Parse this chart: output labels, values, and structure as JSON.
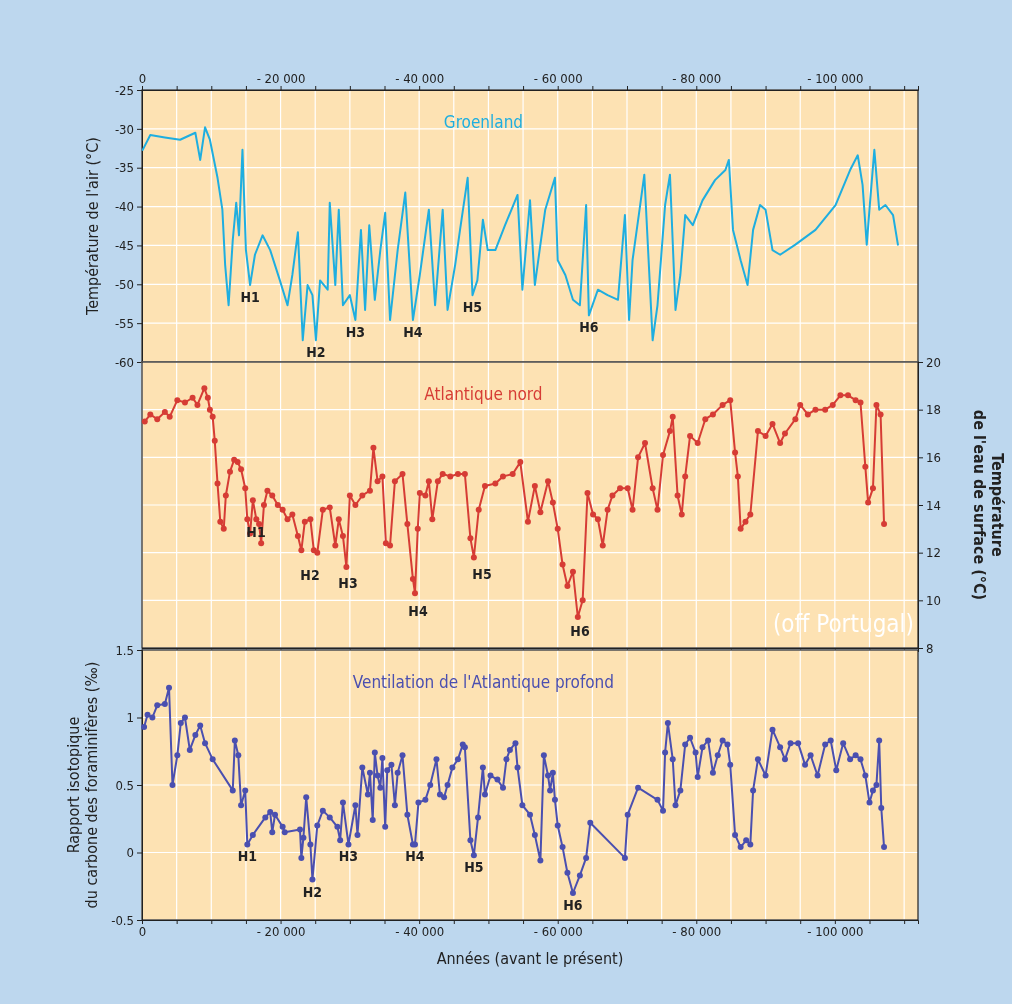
{
  "chart_data": [
    {
      "type": "line",
      "ylabel": "Température de l'air (°C)",
      "xlim": [
        0,
        -112000
      ],
      "x2lim": [
        0,
        -112000
      ],
      "x2ticks": [
        {
          "value": 0,
          "label": "0"
        },
        {
          "value": -5000,
          "label": null
        },
        {
          "value": -10000,
          "label": null
        },
        {
          "value": -15000,
          "label": null
        },
        {
          "value": -20000,
          "label": "- 20 000"
        },
        {
          "value": -25000,
          "label": null
        },
        {
          "value": -30000,
          "label": null
        },
        {
          "value": -35000,
          "label": null
        },
        {
          "value": -40000,
          "label": "- 40 000"
        },
        {
          "value": -45000,
          "label": null
        },
        {
          "value": -50000,
          "label": null
        },
        {
          "value": -55000,
          "label": null
        },
        {
          "value": -60000,
          "label": "- 60 000"
        },
        {
          "value": -65000,
          "label": null
        },
        {
          "value": -70000,
          "label": null
        },
        {
          "value": -75000,
          "label": null
        },
        {
          "value": -80000,
          "label": "- 80 000"
        },
        {
          "value": -85000,
          "label": null
        },
        {
          "value": -90000,
          "label": null
        },
        {
          "value": -95000,
          "label": null
        },
        {
          "value": -100000,
          "label": "- 100 000"
        },
        {
          "value": -105000,
          "label": null
        },
        {
          "value": -110000,
          "label": null
        }
      ],
      "ylim": [
        -60,
        -25
      ],
      "yticks": [
        -60,
        -55,
        -50,
        -45,
        -40,
        -35,
        -30,
        -25
      ],
      "grid": true,
      "series": [
        {
          "name": "Groenland",
          "color": "#1eaee0",
          "x": [
            -100,
            -1200,
            -3300,
            -5500,
            -7700,
            -8400,
            -9100,
            -9800,
            -10900,
            -11600,
            -12000,
            -12500,
            -13100,
            -13600,
            -14000,
            -14500,
            -15000,
            -15600,
            -16300,
            -17400,
            -18500,
            -19900,
            -21000,
            -21700,
            -22500,
            -23200,
            -23900,
            -24600,
            -25100,
            -25700,
            -26800,
            -27100,
            -27900,
            -28400,
            -29000,
            -30000,
            -30800,
            -31600,
            -32200,
            -32800,
            -33600,
            -34400,
            -35100,
            -35800,
            -36900,
            -38000,
            -39100,
            -40100,
            -41400,
            -42300,
            -43400,
            -44100,
            -45200,
            -45900,
            -47000,
            -47700,
            -48400,
            -49200,
            -49900,
            -51000,
            -52400,
            -54200,
            -54900,
            -56000,
            -56700,
            -57500,
            -58200,
            -59600,
            -60000,
            -61100,
            -62200,
            -63200,
            -64100,
            -64500,
            -65800,
            -67200,
            -68700,
            -69700,
            -70300,
            -70800,
            -71900,
            -72500,
            -73700,
            -74400,
            -75500,
            -76200,
            -77000,
            -77700,
            -78400,
            -79500,
            -80900,
            -82700,
            -84200,
            -84700,
            -85300,
            -86400,
            -87400,
            -88200,
            -89200,
            -90000,
            -91000,
            -92100,
            -94300,
            -97200,
            -100100,
            -102200,
            -103300,
            -104000,
            -104600,
            -105100,
            -105700,
            -106400,
            -107300,
            -108400,
            -109100
          ],
          "values": [
            -32.7,
            -30.8,
            -31.1,
            -31.4,
            -30.5,
            -34.0,
            -29.8,
            -31.4,
            -36.3,
            -40.4,
            -47.5,
            -52.7,
            -44.3,
            -39.5,
            -43.7,
            -32.7,
            -45.6,
            -50.1,
            -46.2,
            -43.7,
            -45.6,
            -49.5,
            -52.7,
            -48.8,
            -43.3,
            -57.2,
            -50.1,
            -51.4,
            -57.2,
            -49.5,
            -50.7,
            -39.5,
            -50.1,
            -40.4,
            -52.7,
            -51.4,
            -54.6,
            -43.0,
            -53.3,
            -42.4,
            -52.0,
            -45.6,
            -40.8,
            -54.6,
            -45.6,
            -38.2,
            -54.6,
            -48.8,
            -40.4,
            -52.7,
            -40.4,
            -53.3,
            -47.5,
            -43.0,
            -36.3,
            -51.4,
            -49.5,
            -41.7,
            -45.6,
            -45.6,
            -42.4,
            -38.5,
            -50.7,
            -39.2,
            -50.1,
            -44.9,
            -40.4,
            -36.3,
            -46.9,
            -48.8,
            -52.0,
            -52.7,
            -39.8,
            -54.0,
            -50.7,
            -51.4,
            -52.0,
            -41.1,
            -54.6,
            -46.9,
            -39.8,
            -35.9,
            -57.2,
            -52.7,
            -39.8,
            -35.9,
            -53.3,
            -48.8,
            -41.1,
            -42.4,
            -39.2,
            -36.6,
            -35.3,
            -34.0,
            -43.0,
            -46.9,
            -50.1,
            -43.0,
            -39.8,
            -40.4,
            -45.6,
            -46.2,
            -44.9,
            -43.0,
            -39.8,
            -35.3,
            -33.4,
            -37.2,
            -44.9,
            -39.2,
            -32.7,
            -40.4,
            -39.8,
            -41.1,
            -44.9
          ]
        }
      ],
      "annotations": [
        {
          "text": "H1",
          "x": -15600,
          "y": -50.1
        },
        {
          "text": "H2",
          "x": -25100,
          "y": -57.2
        },
        {
          "text": "H3",
          "x": -30800,
          "y": -54.6
        },
        {
          "text": "H4",
          "x": -39100,
          "y": -54.6
        },
        {
          "text": "H5",
          "x": -47700,
          "y": -51.4
        },
        {
          "text": "H6",
          "x": -64500,
          "y": -54.0
        }
      ]
    },
    {
      "type": "line",
      "y2label": "Température\nde l'eau de surface (°C)",
      "xlim": [
        0,
        -112000
      ],
      "xticks": [
        {
          "value": 0,
          "label": null
        },
        {
          "value": -5000,
          "label": null
        },
        {
          "value": -10000,
          "label": null
        },
        {
          "value": -15000,
          "label": null
        },
        {
          "value": -20000,
          "label": null
        },
        {
          "value": -25000,
          "label": null
        },
        {
          "value": -30000,
          "label": null
        },
        {
          "value": -35000,
          "label": null
        },
        {
          "value": -40000,
          "label": null
        },
        {
          "value": -45000,
          "label": null
        },
        {
          "value": -50000,
          "label": null
        },
        {
          "value": -55000,
          "label": null
        },
        {
          "value": -60000,
          "label": null
        },
        {
          "value": -65000,
          "label": null
        },
        {
          "value": -70000,
          "label": null
        },
        {
          "value": -75000,
          "label": null
        },
        {
          "value": -80000,
          "label": null
        },
        {
          "value": -85000,
          "label": null
        },
        {
          "value": -90000,
          "label": null
        },
        {
          "value": -95000,
          "label": null
        },
        {
          "value": -100000,
          "label": null
        },
        {
          "value": -105000,
          "label": null
        },
        {
          "value": -110000,
          "label": null
        }
      ],
      "y2lim": [
        8,
        20
      ],
      "y2ticks": [
        8,
        10,
        12,
        14,
        16,
        18,
        20
      ],
      "grid": true,
      "marker": "circle",
      "tick_labels": "y",
      "series": [
        {
          "name": "Atlantique nord",
          "color": "#d63c35",
          "axis": "y2",
          "x": [
            -400,
            -1200,
            -2200,
            -3300,
            -4000,
            -5100,
            -6200,
            -7300,
            -8000,
            -9000,
            -9500,
            -9800,
            -10200,
            -10500,
            -10900,
            -11300,
            -11800,
            -12100,
            -12700,
            -13300,
            -13800,
            -14300,
            -14900,
            -15200,
            -15600,
            -16000,
            -16500,
            -16900,
            -17200,
            -17600,
            -18100,
            -18800,
            -19600,
            -20300,
            -21000,
            -21700,
            -22500,
            -23000,
            -23500,
            -24300,
            -24800,
            -25300,
            -26100,
            -27100,
            -27900,
            -28400,
            -29000,
            -29500,
            -30000,
            -30800,
            -31800,
            -32900,
            -33400,
            -34000,
            -34700,
            -35200,
            -35800,
            -36500,
            -37600,
            -38300,
            -39100,
            -39400,
            -39800,
            -40100,
            -40900,
            -41400,
            -41900,
            -42700,
            -43400,
            -44500,
            -45600,
            -46600,
            -47400,
            -47900,
            -48600,
            -49500,
            -51000,
            -52100,
            -53500,
            -54600,
            -55700,
            -56700,
            -57500,
            -58600,
            -59300,
            -60000,
            -60700,
            -61400,
            -62200,
            -62900,
            -63600,
            -64300,
            -65100,
            -65800,
            -66500,
            -67200,
            -67900,
            -69000,
            -70100,
            -70800,
            -71600,
            -72600,
            -73700,
            -74400,
            -75200,
            -76200,
            -76600,
            -77300,
            -77900,
            -78400,
            -79100,
            -80200,
            -81300,
            -82400,
            -83800,
            -84900,
            -85600,
            -86000,
            -86400,
            -87100,
            -87800,
            -88900,
            -90000,
            -91000,
            -92100,
            -92800,
            -94300,
            -95000,
            -96100,
            -97200,
            -98600,
            -99700,
            -100800,
            -101900,
            -103000,
            -103700,
            -104400,
            -104800,
            -105500,
            -106000,
            -106600,
            -107100
          ],
          "values": [
            17.5,
            17.8,
            17.6,
            17.9,
            17.7,
            18.4,
            18.3,
            18.5,
            18.2,
            18.9,
            18.5,
            18.0,
            17.7,
            16.7,
            14.9,
            13.3,
            13.0,
            14.4,
            15.4,
            15.9,
            15.8,
            15.5,
            14.7,
            13.4,
            12.8,
            14.2,
            13.4,
            13.2,
            12.4,
            14.0,
            14.6,
            14.4,
            14.0,
            13.8,
            13.4,
            13.6,
            12.7,
            12.1,
            13.3,
            13.4,
            12.1,
            12.0,
            13.8,
            13.9,
            12.3,
            13.4,
            12.7,
            11.4,
            14.4,
            14.0,
            14.4,
            14.6,
            16.4,
            15.0,
            15.2,
            12.4,
            12.3,
            15.0,
            15.3,
            13.2,
            10.9,
            10.3,
            13.0,
            14.5,
            14.4,
            15.0,
            13.4,
            15.0,
            15.3,
            15.2,
            15.3,
            15.3,
            12.6,
            11.8,
            13.8,
            14.8,
            14.9,
            15.2,
            15.3,
            15.8,
            13.3,
            14.8,
            13.7,
            15.0,
            14.1,
            13.0,
            11.5,
            10.6,
            11.2,
            9.3,
            10.0,
            14.5,
            13.6,
            13.4,
            12.3,
            13.8,
            14.4,
            14.7,
            14.7,
            13.8,
            16.0,
            16.6,
            14.7,
            13.8,
            16.1,
            17.1,
            17.7,
            14.4,
            13.6,
            15.2,
            16.9,
            16.6,
            17.6,
            17.8,
            18.2,
            18.4,
            16.2,
            15.2,
            13.0,
            13.3,
            13.6,
            17.1,
            16.9,
            17.4,
            16.6,
            17.0,
            17.6,
            18.2,
            17.8,
            18.0,
            18.0,
            18.2,
            18.6,
            18.6,
            18.4,
            18.3,
            15.6,
            14.1,
            14.7,
            18.2,
            17.8,
            13.2
          ]
        }
      ],
      "annotations": [
        "H1",
        "H2",
        "H3",
        "H4",
        "H5",
        "H6",
        "(off Portugal)"
      ]
    },
    {
      "type": "line",
      "xlabel": "Années (avant le présent)",
      "ylabel": "Rapport isotopique\ndu carbone des foraminifères (‰)",
      "xlim": [
        0,
        -112000
      ],
      "xticks": [
        {
          "value": 0,
          "label": "0"
        },
        {
          "value": -5000,
          "label": null
        },
        {
          "value": -10000,
          "label": null
        },
        {
          "value": -15000,
          "label": null
        },
        {
          "value": -20000,
          "label": "- 20 000"
        },
        {
          "value": -25000,
          "label": null
        },
        {
          "value": -30000,
          "label": null
        },
        {
          "value": -35000,
          "label": null
        },
        {
          "value": -40000,
          "label": "- 40 000"
        },
        {
          "value": -45000,
          "label": null
        },
        {
          "value": -50000,
          "label": null
        },
        {
          "value": -55000,
          "label": null
        },
        {
          "value": -60000,
          "label": "- 60 000"
        },
        {
          "value": -65000,
          "label": null
        },
        {
          "value": -70000,
          "label": null
        },
        {
          "value": -75000,
          "label": null
        },
        {
          "value": -80000,
          "label": "- 80 000"
        },
        {
          "value": -85000,
          "label": null
        },
        {
          "value": -90000,
          "label": null
        },
        {
          "value": -95000,
          "label": null
        },
        {
          "value": -100000,
          "label": "- 100 000"
        },
        {
          "value": -105000,
          "label": null
        },
        {
          "value": -110000,
          "label": null
        }
      ],
      "ylim": [
        -0.5,
        1.5
      ],
      "yticks": [
        -0.5,
        0,
        0.5,
        1,
        1.5
      ],
      "grid": true,
      "marker": "circle",
      "series": [
        {
          "name": "Ventilation de l'Atlantique profond",
          "color": "#4a4fb0",
          "x": [
            -300,
            -800,
            -1500,
            -2200,
            -3300,
            -3900,
            -4400,
            -5100,
            -5600,
            -6200,
            -6900,
            -7700,
            -8400,
            -9100,
            -10200,
            -13100,
            -13400,
            -13900,
            -14300,
            -14900,
            -15200,
            -16000,
            -17800,
            -18500,
            -18800,
            -19200,
            -20300,
            -20600,
            -22800,
            -23000,
            -23300,
            -23700,
            -24300,
            -24600,
            -25300,
            -26100,
            -27100,
            -28200,
            -28600,
            -29000,
            -29800,
            -30800,
            -31100,
            -31800,
            -32600,
            -32900,
            -33300,
            -33600,
            -34000,
            -34400,
            -34700,
            -35100,
            -35400,
            -36000,
            -36500,
            -36900,
            -37600,
            -38300,
            -39100,
            -39400,
            -39900,
            -40900,
            -41600,
            -42500,
            -43000,
            -43600,
            -44100,
            -44800,
            -45600,
            -46300,
            -46600,
            -47400,
            -47900,
            -48500,
            -49200,
            -49500,
            -50300,
            -51300,
            -52100,
            -52600,
            -53100,
            -53900,
            -54200,
            -54900,
            -56000,
            -56700,
            -57500,
            -58000,
            -58600,
            -58900,
            -59300,
            -59600,
            -60000,
            -60700,
            -61400,
            -62200,
            -63200,
            -64100,
            -64700,
            -69700,
            -70100,
            -71600,
            -74400,
            -75200,
            -75500,
            -75900,
            -76600,
            -77000,
            -77700,
            -78400,
            -79100,
            -79900,
            -80200,
            -80900,
            -81700,
            -82400,
            -83100,
            -83800,
            -84500,
            -84900,
            -85600,
            -86400,
            -87200,
            -87800,
            -88200,
            -88900,
            -90000,
            -91000,
            -92100,
            -92800,
            -93600,
            -94700,
            -95700,
            -96500,
            -97500,
            -98600,
            -99400,
            -100200,
            -101200,
            -102200,
            -103000,
            -103700,
            -104400,
            -105000,
            -105500,
            -106000,
            -106400,
            -106700,
            -107100
          ],
          "values": [
            0.93,
            1.02,
            1.0,
            1.09,
            1.1,
            1.22,
            0.5,
            0.72,
            0.96,
            1.0,
            0.76,
            0.87,
            0.94,
            0.81,
            0.69,
            0.46,
            0.83,
            0.72,
            0.35,
            0.46,
            0.06,
            0.13,
            0.26,
            0.3,
            0.15,
            0.28,
            0.19,
            0.15,
            0.17,
            -0.04,
            0.11,
            0.41,
            0.06,
            -0.2,
            0.2,
            0.31,
            0.26,
            0.19,
            0.09,
            0.37,
            0.06,
            0.35,
            0.13,
            0.63,
            0.43,
            0.59,
            0.24,
            0.74,
            0.57,
            0.48,
            0.7,
            0.19,
            0.61,
            0.65,
            0.35,
            0.59,
            0.72,
            0.28,
            0.06,
            0.06,
            0.37,
            0.39,
            0.5,
            0.69,
            0.43,
            0.41,
            0.5,
            0.63,
            0.69,
            0.8,
            0.78,
            0.09,
            -0.02,
            0.26,
            0.63,
            0.43,
            0.57,
            0.54,
            0.48,
            0.69,
            0.76,
            0.81,
            0.63,
            0.35,
            0.28,
            0.13,
            -0.06,
            0.72,
            0.57,
            0.46,
            0.59,
            0.39,
            0.2,
            0.04,
            -0.15,
            -0.3,
            -0.17,
            -0.04,
            0.22,
            -0.04,
            0.28,
            0.48,
            0.39,
            0.31,
            0.74,
            0.96,
            0.69,
            0.35,
            0.46,
            0.8,
            0.85,
            0.74,
            0.56,
            0.78,
            0.83,
            0.59,
            0.72,
            0.83,
            0.8,
            0.65,
            0.13,
            0.04,
            0.09,
            0.06,
            0.46,
            0.69,
            0.57,
            0.91,
            0.78,
            0.69,
            0.81,
            0.81,
            0.65,
            0.72,
            0.57,
            0.8,
            0.83,
            0.61,
            0.81,
            0.69,
            0.72,
            0.69,
            0.57,
            0.37,
            0.46,
            0.5,
            0.83,
            0.33,
            0.04
          ]
        }
      ],
      "annotations": [
        {
          "text": "H1",
          "x": -15200,
          "y": 0.06
        },
        {
          "text": "H2",
          "x": -24600,
          "y": -0.2
        },
        {
          "text": "H3",
          "x": -29800,
          "y": 0.06
        },
        {
          "text": "H4",
          "x": -39400,
          "y": 0.06
        },
        {
          "text": "H5",
          "x": -47900,
          "y": -0.02
        },
        {
          "text": "H6",
          "x": -62200,
          "y": -0.3
        }
      ]
    }
  ]
}
